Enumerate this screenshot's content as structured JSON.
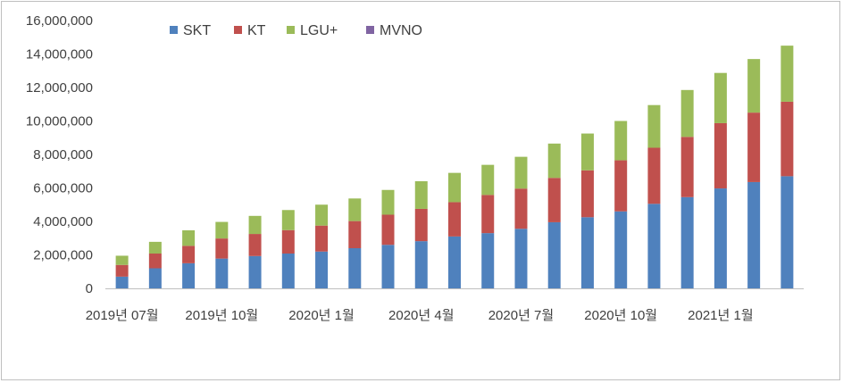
{
  "chart_data": {
    "type": "bar",
    "stacked": true,
    "title": "",
    "xlabel": "",
    "ylabel": "",
    "ylim": [
      0,
      16000000
    ],
    "y_ticks": [
      0,
      2000000,
      4000000,
      6000000,
      8000000,
      10000000,
      12000000,
      14000000,
      16000000
    ],
    "y_tick_labels": [
      "0",
      "2,000,000",
      "4,000,000",
      "6,000,000",
      "8,000,000",
      "10,000,000",
      "12,000,000",
      "14,000,000",
      "16,000,000"
    ],
    "categories": [
      "2019년 07월",
      "2019년 08월",
      "2019년 09월",
      "2019년 10월",
      "2019년 11월",
      "2019년 12월",
      "2020년 1월",
      "2020년 2월",
      "2020년 3월",
      "2020년 4월",
      "2020년 5월",
      "2020년 6월",
      "2020년 7월",
      "2020년 8월",
      "2020년 9월",
      "2020년 10월",
      "2020년 11월",
      "2020년 12월",
      "2021년 1월",
      "2021년 2월",
      "2021년 3월"
    ],
    "x_tick_labels": [
      {
        "index": 0,
        "label": "2019년 07월"
      },
      {
        "index": 3,
        "label": "2019년 10월"
      },
      {
        "index": 6,
        "label": "2020년 1월"
      },
      {
        "index": 9,
        "label": "2020년 4월"
      },
      {
        "index": 12,
        "label": "2020년 7월"
      },
      {
        "index": 15,
        "label": "2020년 10월"
      },
      {
        "index": 18,
        "label": "2021년 1월"
      }
    ],
    "series": [
      {
        "name": "SKT",
        "color": "#4f81bd",
        "values": [
          700000,
          1200000,
          1500000,
          1780000,
          1930000,
          2080000,
          2200000,
          2400000,
          2600000,
          2820000,
          3100000,
          3300000,
          3560000,
          3950000,
          4250000,
          4600000,
          5050000,
          5450000,
          5970000,
          6350000,
          6700000
        ]
      },
      {
        "name": "KT",
        "color": "#c0504d",
        "values": [
          700000,
          880000,
          1040000,
          1200000,
          1320000,
          1400000,
          1550000,
          1620000,
          1800000,
          1930000,
          2050000,
          2280000,
          2400000,
          2650000,
          2800000,
          3050000,
          3350000,
          3600000,
          3900000,
          4150000,
          4450000
        ]
      },
      {
        "name": "LGU+",
        "color": "#9bbb59",
        "values": [
          550000,
          700000,
          930000,
          990000,
          1080000,
          1200000,
          1250000,
          1350000,
          1480000,
          1650000,
          1750000,
          1800000,
          1900000,
          2050000,
          2200000,
          2350000,
          2550000,
          2800000,
          3000000,
          3200000,
          3350000
        ]
      },
      {
        "name": "MVNO",
        "color": "#8064a2",
        "values": [
          0,
          0,
          0,
          0,
          0,
          0,
          0,
          0,
          0,
          0,
          0,
          0,
          0,
          0,
          0,
          0,
          0,
          0,
          0,
          0,
          0
        ]
      }
    ],
    "legend_position": "top"
  }
}
